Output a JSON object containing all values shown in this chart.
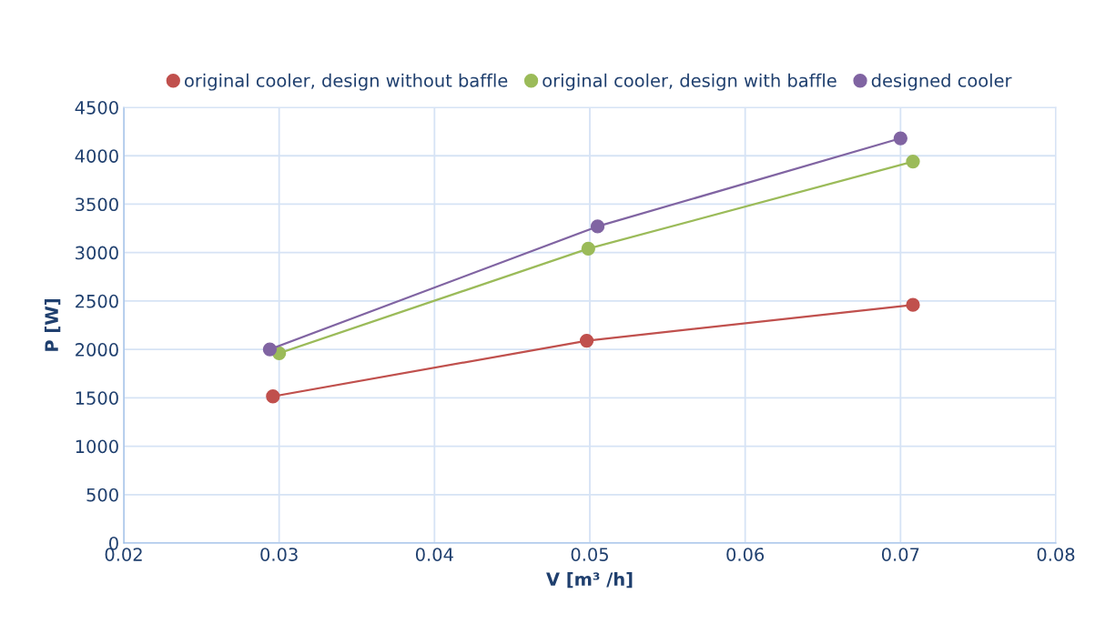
{
  "chart_data": {
    "type": "line",
    "xlabel": "V [m³ /h]",
    "ylabel": "P [W]",
    "xlim": [
      0.02,
      0.08
    ],
    "xticks": [
      0.02,
      0.03,
      0.04,
      0.05,
      0.06,
      0.07,
      0.08
    ],
    "ylim": [
      0,
      4500
    ],
    "yticks": [
      0,
      500,
      1000,
      1500,
      2000,
      2500,
      3000,
      3500,
      4000,
      4500
    ],
    "grid": true,
    "legend": "top",
    "marker": "circle",
    "line_style": "solid",
    "series": [
      {
        "name": "original cooler, design without baffle",
        "color": "#c0504d",
        "x": [
          0.0296,
          0.0498,
          0.0708
        ],
        "values": [
          1515,
          2090,
          2460
        ]
      },
      {
        "name": "original cooler, design with baffle",
        "color": "#9bbb59",
        "x": [
          0.03,
          0.0499,
          0.0708
        ],
        "values": [
          1960,
          3040,
          3940
        ]
      },
      {
        "name": "designed cooler",
        "color": "#8064a2",
        "x": [
          0.0294,
          0.0505,
          0.07
        ],
        "values": [
          2000,
          3270,
          4180
        ]
      }
    ]
  }
}
